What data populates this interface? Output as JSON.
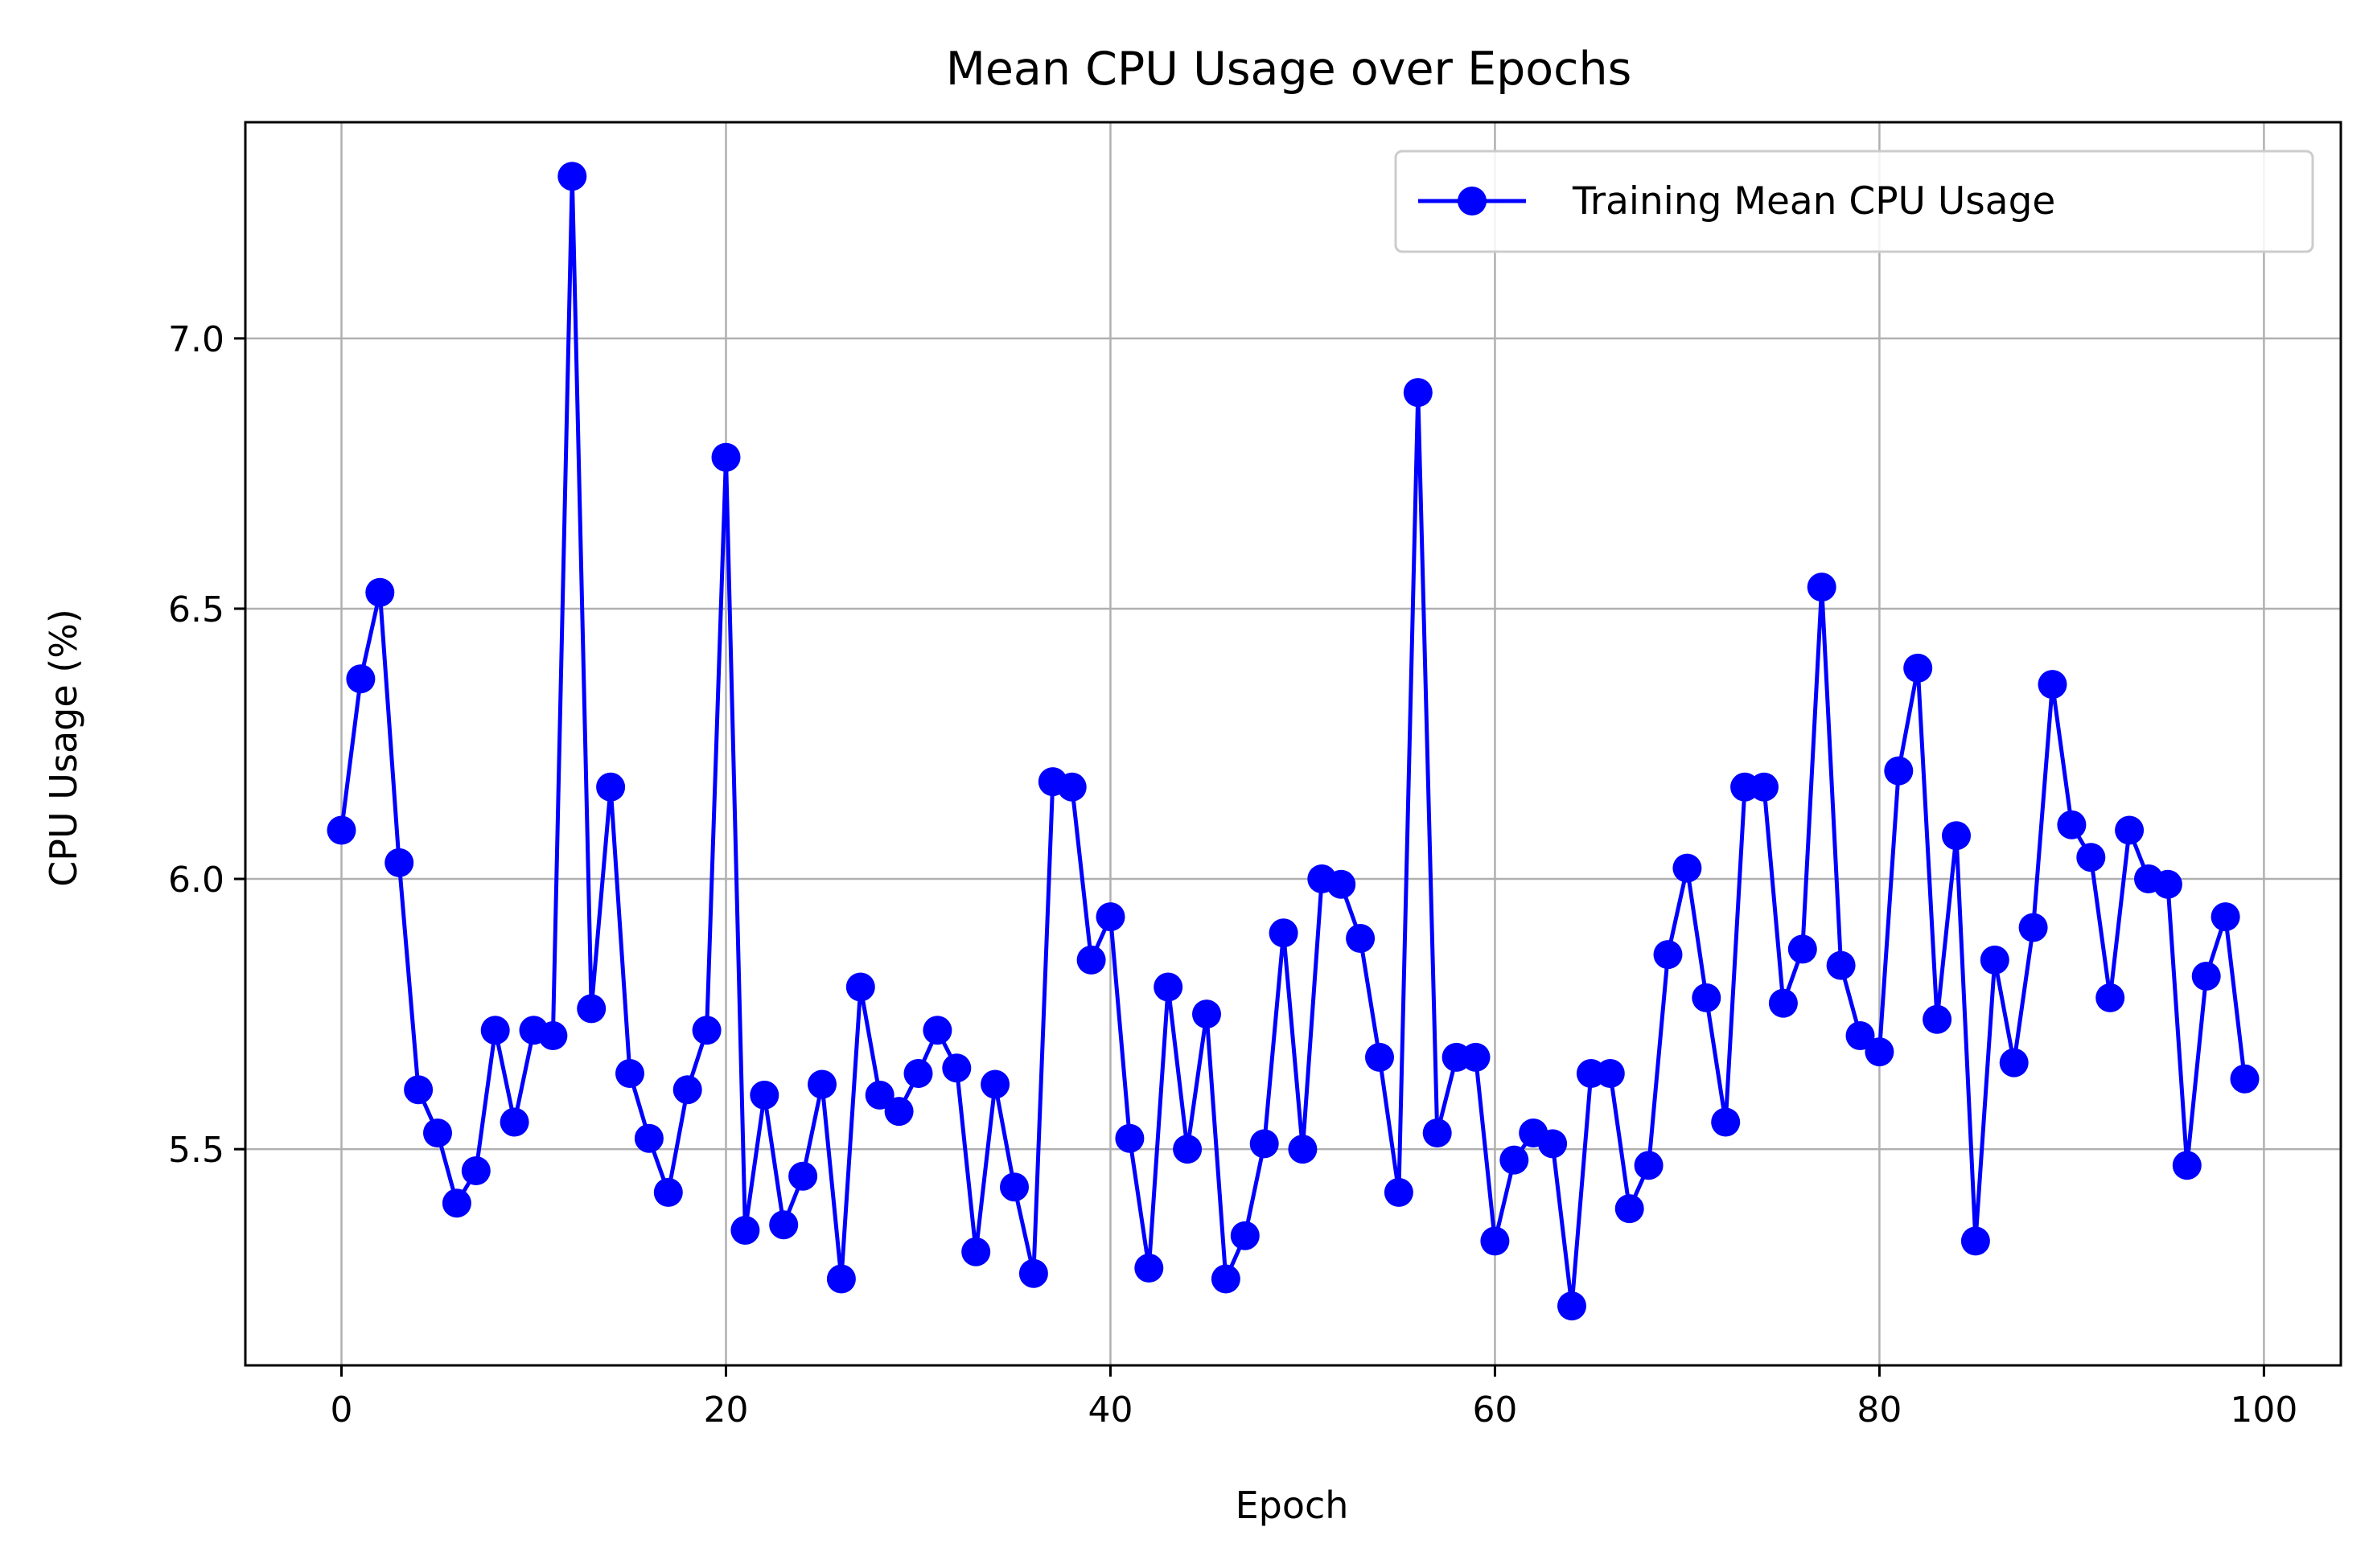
{
  "chart_data": {
    "type": "line",
    "title": "Mean CPU Usage over Epochs",
    "xlabel": "Epoch",
    "ylabel": "CPU Usage (%)",
    "xlim": [
      -5,
      104
    ],
    "ylim": [
      5.1,
      7.4
    ],
    "xticks": [
      0,
      20,
      40,
      60,
      80,
      100
    ],
    "yticks": [
      5.5,
      6.0,
      6.5,
      7.0
    ],
    "xtick_labels": [
      "0",
      "20",
      "40",
      "60",
      "80",
      "100"
    ],
    "ytick_labels": [
      "5.5",
      "6.0",
      "6.5",
      "7.0"
    ],
    "grid": true,
    "legend_position": "top-right",
    "series": [
      {
        "name": "Training Mean CPU Usage",
        "color": "#0000ff",
        "marker": "circle",
        "x": [
          0,
          1,
          2,
          3,
          4,
          5,
          6,
          7,
          8,
          9,
          10,
          11,
          12,
          13,
          14,
          15,
          16,
          17,
          18,
          19,
          20,
          21,
          22,
          23,
          24,
          25,
          26,
          27,
          28,
          29,
          30,
          31,
          32,
          33,
          34,
          35,
          36,
          37,
          38,
          39,
          40,
          41,
          42,
          43,
          44,
          45,
          46,
          47,
          48,
          49,
          50,
          51,
          52,
          53,
          54,
          55,
          56,
          57,
          58,
          59,
          60,
          61,
          62,
          63,
          64,
          65,
          66,
          67,
          68,
          69,
          70,
          71,
          72,
          73,
          74,
          75,
          76,
          77,
          78,
          79,
          80,
          81,
          82,
          83,
          84,
          85,
          86,
          87,
          88,
          89,
          90,
          91,
          92,
          93,
          94,
          95,
          96,
          97,
          98,
          99
        ],
        "values": [
          6.09,
          6.37,
          6.53,
          6.03,
          5.61,
          5.53,
          5.4,
          5.46,
          5.72,
          5.55,
          5.72,
          5.71,
          7.3,
          5.76,
          6.17,
          5.64,
          5.52,
          5.42,
          5.61,
          5.72,
          6.78,
          5.35,
          5.6,
          5.36,
          5.45,
          5.62,
          5.26,
          5.8,
          5.6,
          5.57,
          5.64,
          5.72,
          5.65,
          5.31,
          5.62,
          5.43,
          5.27,
          6.18,
          6.17,
          5.85,
          5.93,
          5.52,
          5.28,
          5.8,
          5.5,
          5.75,
          5.26,
          5.34,
          5.51,
          5.9,
          5.5,
          6.0,
          5.99,
          5.89,
          5.67,
          5.42,
          6.9,
          5.53,
          5.67,
          5.67,
          5.33,
          5.48,
          5.53,
          5.51,
          5.21,
          5.64,
          5.64,
          5.39,
          5.47,
          5.86,
          6.02,
          5.78,
          5.55,
          6.17,
          6.17,
          5.77,
          5.87,
          6.54,
          5.84,
          5.71,
          5.68,
          6.2,
          6.39,
          5.74,
          6.08,
          5.33,
          5.85,
          5.66,
          5.91,
          6.36,
          6.1,
          6.04,
          5.78,
          6.09,
          6.0,
          5.99,
          5.47,
          5.82,
          5.93,
          5.63
        ]
      }
    ]
  }
}
